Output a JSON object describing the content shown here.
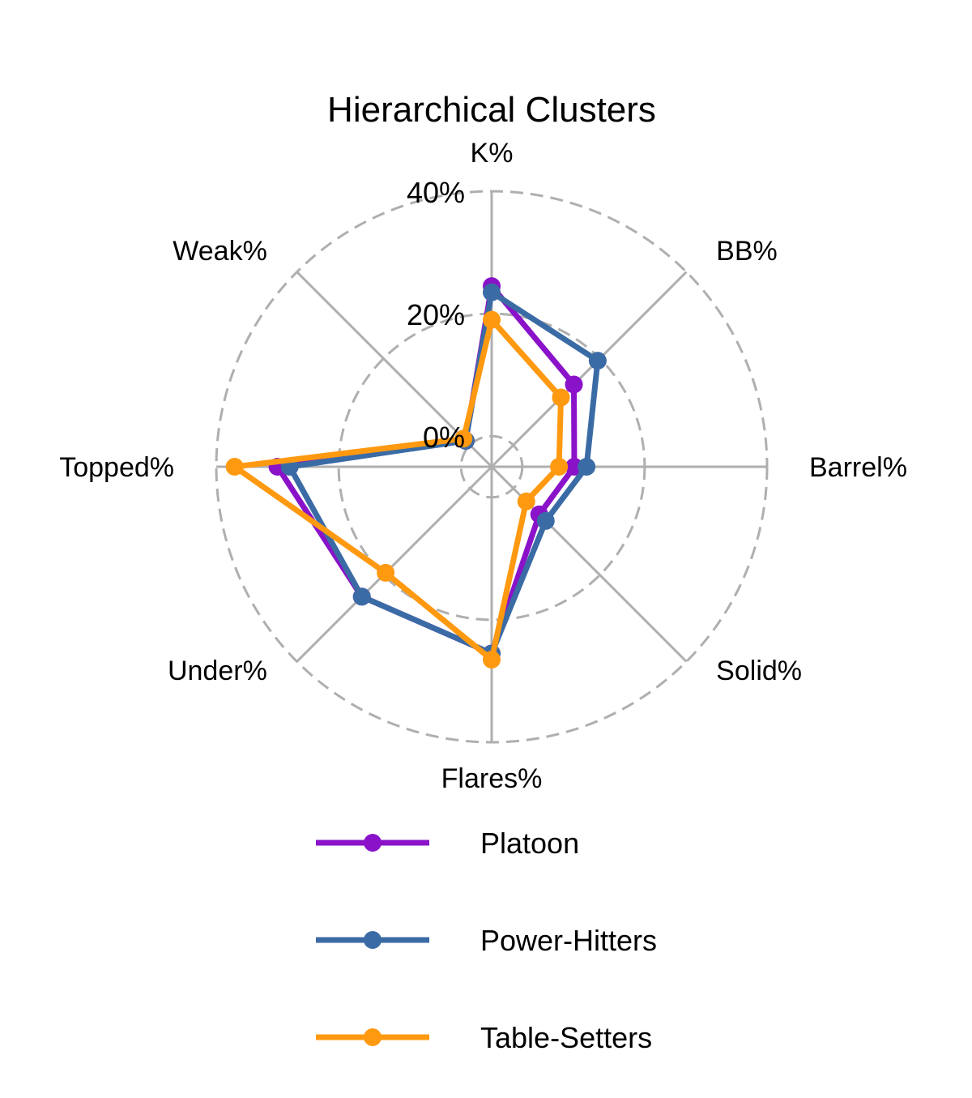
{
  "chart_data": {
    "type": "radar",
    "title": "Hierarchical Clusters",
    "axes": [
      "K%",
      "BB%",
      "Barrel%",
      "Solid%",
      "Flares%",
      "Under%",
      "Topped%",
      "Weak%"
    ],
    "radial_ticks": [
      {
        "value": 0,
        "label": "0%"
      },
      {
        "value": 20,
        "label": "20%"
      },
      {
        "value": 40,
        "label": "40%"
      }
    ],
    "rlim": [
      -5,
      40
    ],
    "grid": true,
    "legend_position": "bottom",
    "series": [
      {
        "name": "Platoon",
        "color": "#8A12C9",
        "values": [
          24.5,
          14.0,
          8.5,
          6.0,
          25.5,
          25.0,
          30.0,
          1.0
        ]
      },
      {
        "name": "Power-Hitters",
        "color": "#3A6BA5",
        "values": [
          23.5,
          19.5,
          10.5,
          7.5,
          25.5,
          25.0,
          28.0,
          1.0
        ]
      },
      {
        "name": "Table-Setters",
        "color": "#FF9910",
        "values": [
          19.0,
          11.0,
          6.0,
          3.0,
          26.5,
          19.5,
          37.0,
          1.5
        ]
      }
    ]
  },
  "colors": {
    "grid": "#AFAFAF",
    "text": "#000000"
  }
}
